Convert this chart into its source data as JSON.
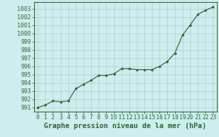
{
  "x": [
    0,
    1,
    2,
    3,
    4,
    5,
    6,
    7,
    8,
    9,
    10,
    11,
    12,
    13,
    14,
    15,
    16,
    17,
    18,
    19,
    20,
    21,
    22,
    23
  ],
  "y": [
    991.0,
    991.3,
    991.8,
    991.7,
    991.8,
    993.3,
    993.8,
    994.3,
    994.9,
    994.9,
    995.1,
    995.7,
    995.7,
    995.6,
    995.6,
    995.6,
    996.0,
    996.6,
    997.6,
    999.8,
    1001.0,
    1002.3,
    1002.8,
    1003.2
  ],
  "line_color": "#336633",
  "marker_color": "#336633",
  "bg_color": "#cceeee",
  "grid_color": "#aacccc",
  "xlabel": "Graphe pression niveau de la mer (hPa)",
  "ylim": [
    990.5,
    1003.8
  ],
  "xlim": [
    -0.5,
    23.5
  ],
  "yticks": [
    991,
    992,
    993,
    994,
    995,
    996,
    997,
    998,
    999,
    1000,
    1001,
    1002,
    1003
  ],
  "xticks": [
    0,
    1,
    2,
    3,
    4,
    5,
    6,
    7,
    8,
    9,
    10,
    11,
    12,
    13,
    14,
    15,
    16,
    17,
    18,
    19,
    20,
    21,
    22,
    23
  ],
  "xlabel_fontsize": 7.5,
  "tick_fontsize": 6.0
}
